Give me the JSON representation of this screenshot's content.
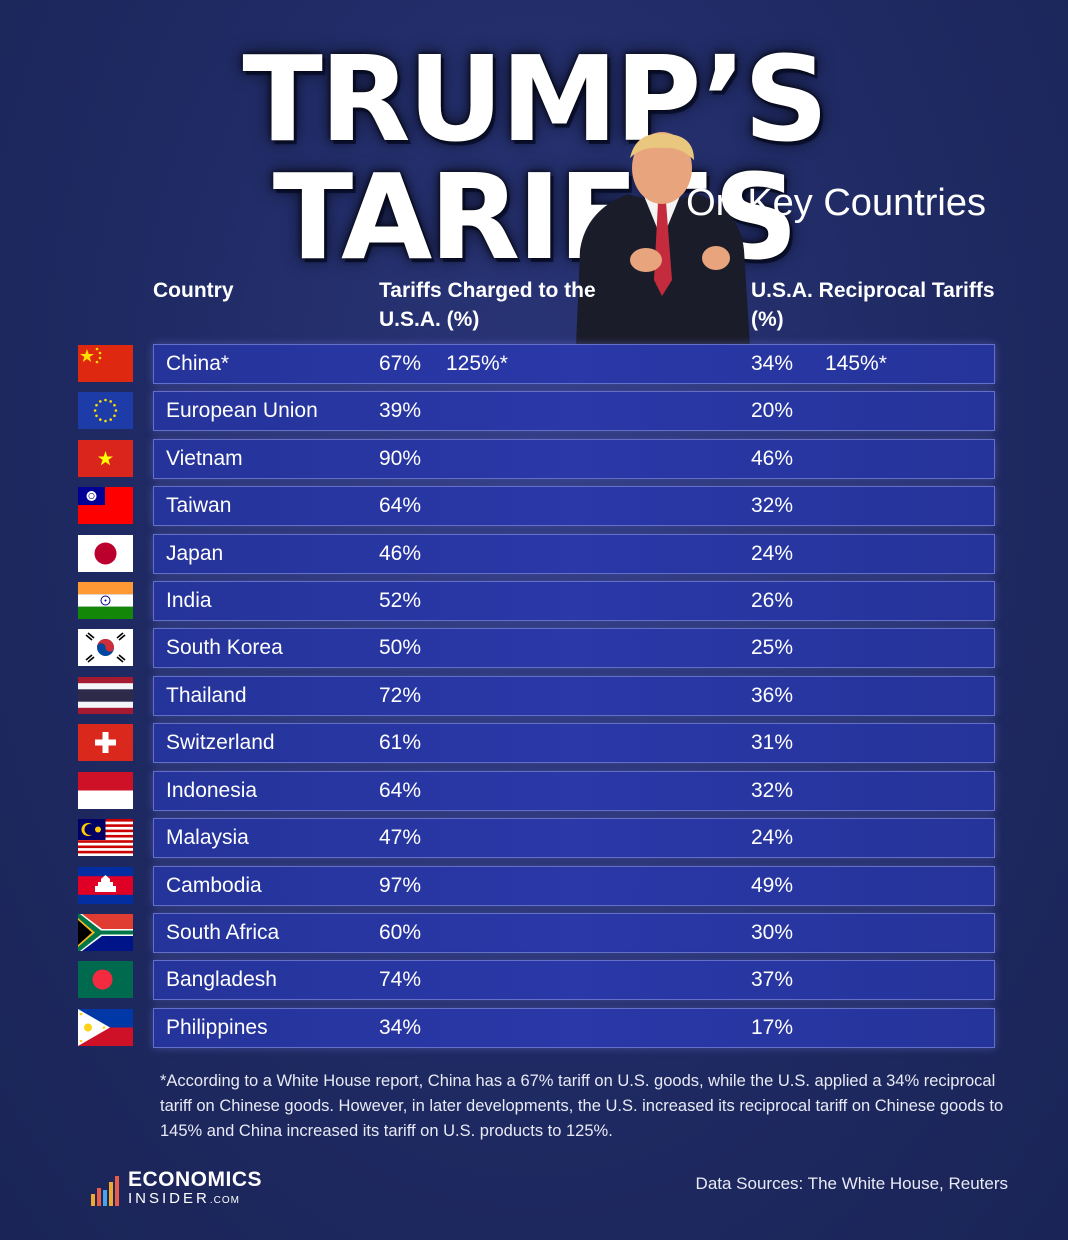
{
  "header": {
    "title": "TRUMP’S TARIFFS",
    "subtitle": "On Key Countries"
  },
  "columns": {
    "country": "Country",
    "charged": "Tariffs Charged to the U.S.A. (%)",
    "reciprocal": "U.S.A. Reciprocal Tariffs (%)"
  },
  "chart_data": {
    "type": "table",
    "title": "TRUMP’S TARIFFS",
    "subtitle": "On Key Countries",
    "columns": [
      "Country",
      "Tariffs Charged to the U.S.A. (%)",
      "U.S.A. Reciprocal Tariffs (%)"
    ],
    "rows": [
      {
        "country": "China*",
        "charged": "67%",
        "charged_extra": "125%*",
        "reciprocal": "34%",
        "reciprocal_extra": "145%*",
        "flag": "china-flag-icon"
      },
      {
        "country": "European Union",
        "charged": "39%",
        "reciprocal": "20%",
        "flag": "eu-flag-icon"
      },
      {
        "country": "Vietnam",
        "charged": "90%",
        "reciprocal": "46%",
        "flag": "vietnam-flag-icon"
      },
      {
        "country": "Taiwan",
        "charged": "64%",
        "reciprocal": "32%",
        "flag": "taiwan-flag-icon"
      },
      {
        "country": "Japan",
        "charged": "46%",
        "reciprocal": "24%",
        "flag": "japan-flag-icon"
      },
      {
        "country": "India",
        "charged": "52%",
        "reciprocal": "26%",
        "flag": "india-flag-icon"
      },
      {
        "country": "South Korea",
        "charged": "50%",
        "reciprocal": "25%",
        "flag": "south-korea-flag-icon"
      },
      {
        "country": "Thailand",
        "charged": "72%",
        "reciprocal": "36%",
        "flag": "thailand-flag-icon"
      },
      {
        "country": "Switzerland",
        "charged": "61%",
        "reciprocal": "31%",
        "flag": "switzerland-flag-icon"
      },
      {
        "country": "Indonesia",
        "charged": "64%",
        "reciprocal": "32%",
        "flag": "indonesia-flag-icon"
      },
      {
        "country": "Malaysia",
        "charged": "47%",
        "reciprocal": "24%",
        "flag": "malaysia-flag-icon"
      },
      {
        "country": "Cambodia",
        "charged": "97%",
        "reciprocal": "49%",
        "flag": "cambodia-flag-icon"
      },
      {
        "country": "South Africa",
        "charged": "60%",
        "reciprocal": "30%",
        "flag": "south-africa-flag-icon"
      },
      {
        "country": "Bangladesh",
        "charged": "74%",
        "reciprocal": "37%",
        "flag": "bangladesh-flag-icon"
      },
      {
        "country": "Philippines",
        "charged": "34%",
        "reciprocal": "17%",
        "flag": "philippines-flag-icon"
      }
    ]
  },
  "footnote": "*According to a White House report, China has a 67% tariff on U.S. goods, while the U.S. applied a 34% reciprocal tariff on Chinese goods. However, in later developments, the U.S. increased its reciprocal tariff on Chinese goods to 145% and China increased its tariff on U.S. products to 125%.",
  "footer": {
    "logo_line1": "ECONOMICS",
    "logo_line2": "INSIDER",
    "logo_suffix": ".COM",
    "sources": "Data Sources: The White House, Reuters"
  },
  "colors": {
    "background": "#1f2a63",
    "row_fill": "#2a38a8",
    "row_border": "#6470c8",
    "text": "#ffffff"
  }
}
